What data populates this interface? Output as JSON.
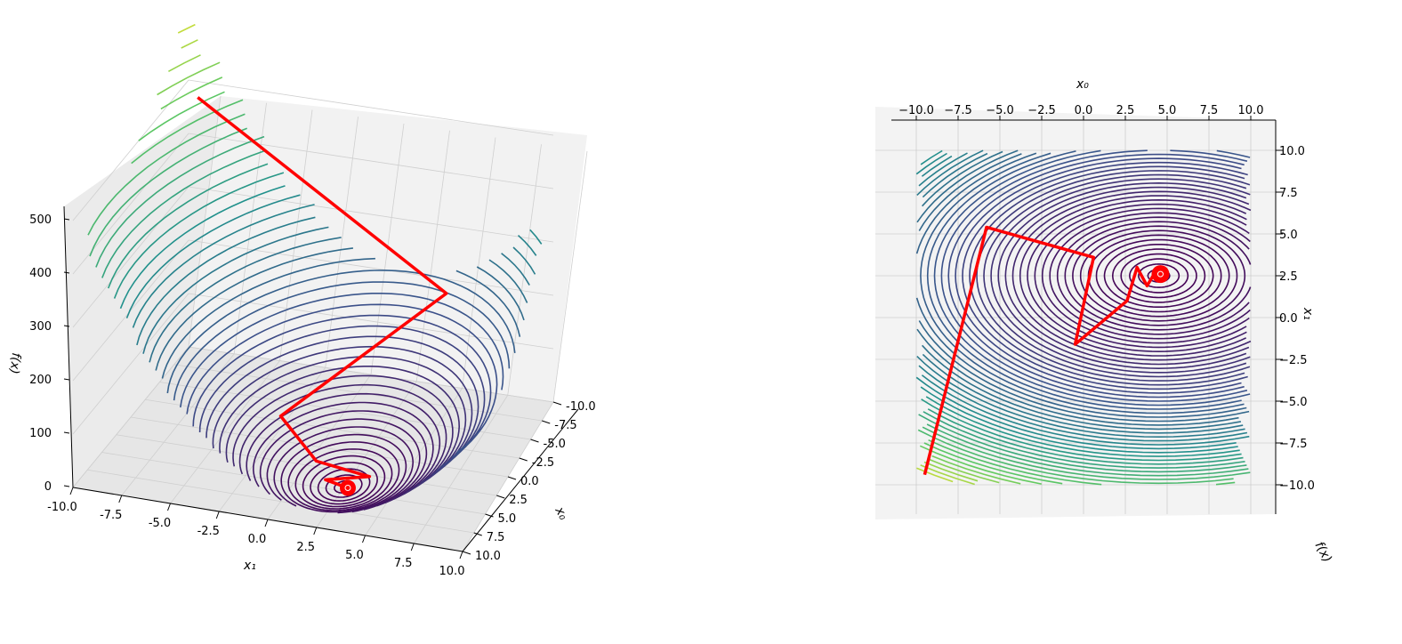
{
  "chart_data": [
    {
      "type": "contour3d",
      "view": "3d-perspective",
      "x0_label": "x₀",
      "x1_label": "x₁",
      "z_label": "f(x)",
      "x0_ticks": [
        "-10.0",
        "-7.5",
        "-5.0",
        "-2.5",
        "0.0",
        "2.5",
        "5.0",
        "7.5",
        "10.0"
      ],
      "x1_ticks": [
        "-10.0",
        "-7.5",
        "-5.0",
        "-2.5",
        "0.0",
        "2.5",
        "5.0",
        "7.5",
        "10.0"
      ],
      "z_ticks": [
        "0",
        "100",
        "200",
        "300",
        "400",
        "500"
      ],
      "x0_range": [
        -10,
        10
      ],
      "x1_range": [
        -10,
        10
      ],
      "z_range": [
        0,
        500
      ],
      "grid": true,
      "colormap": "viridis",
      "path_color": "#ff0000",
      "path": {
        "x0": [
          -10.0,
          -5.6,
          0.9,
          2.8,
          3.2,
          4.0,
          4.5
        ],
        "x1": [
          -9.5,
          5.3,
          -1.8,
          0.6,
          3.5,
          1.4,
          2.7
        ],
        "f": [
          470,
          240,
          60,
          15,
          8,
          1,
          0
        ]
      },
      "minimum": {
        "x0": 4.5,
        "x1": 2.7
      }
    },
    {
      "type": "contour3d",
      "view": "top-down",
      "x0_label": "x₀",
      "x1_label": "x₁",
      "z_label": "f(x)",
      "x0_ticks": [
        "−10.0",
        "−7.5",
        "−5.0",
        "−2.5",
        "0.0",
        "2.5",
        "5.0",
        "7.5",
        "10.0"
      ],
      "x1_ticks": [
        "10.0",
        "7.5",
        "5.0",
        "2.5",
        "0.0",
        "−2.5",
        "−5.0",
        "−7.5",
        "−10.0"
      ],
      "x0_range": [
        -10,
        10
      ],
      "x1_range": [
        -10,
        10
      ],
      "grid": true,
      "colormap": "viridis",
      "path_color": "#ff0000",
      "path": {
        "x0": [
          -9.5,
          -5.8,
          0.6,
          -0.5,
          2.6,
          3.2,
          3.8,
          4.4,
          4.6
        ],
        "x1": [
          -9.4,
          5.4,
          3.6,
          -1.6,
          1.0,
          3.0,
          1.9,
          2.9,
          2.6
        ]
      },
      "minimum": {
        "x0": 4.6,
        "x1": 2.6
      }
    }
  ]
}
